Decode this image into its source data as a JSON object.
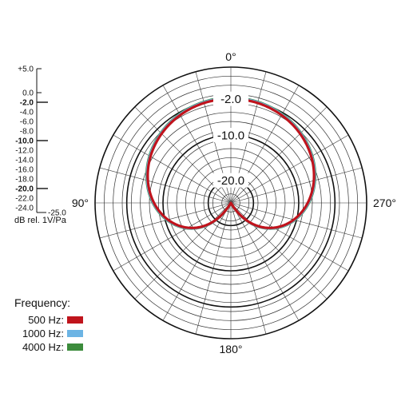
{
  "chart_data": {
    "type": "polar",
    "unit_label": "dB rel. 1V/Pa",
    "scale_ticks": [
      {
        "label": "+5.0",
        "value": 5,
        "bold": false
      },
      {
        "label": "0.0",
        "value": 0,
        "bold": false
      },
      {
        "label": "-2.0",
        "value": -2,
        "bold": true
      },
      {
        "label": "-4.0",
        "value": -4,
        "bold": false
      },
      {
        "label": "-6.0",
        "value": -6,
        "bold": false
      },
      {
        "label": "-8.0",
        "value": -8,
        "bold": false
      },
      {
        "label": "-10.0",
        "value": -10,
        "bold": true
      },
      {
        "label": "-12.0",
        "value": -12,
        "bold": false
      },
      {
        "label": "-14.0",
        "value": -14,
        "bold": false
      },
      {
        "label": "-16.0",
        "value": -16,
        "bold": false
      },
      {
        "label": "-18.0",
        "value": -18,
        "bold": false
      },
      {
        "label": "-20.0",
        "value": -20,
        "bold": true
      },
      {
        "label": "-22.0",
        "value": -22,
        "bold": false
      },
      {
        "label": "-24.0",
        "value": -24,
        "bold": false
      },
      {
        "label": "-25.0",
        "value": -25,
        "bold": false
      }
    ],
    "ring_labels": [
      {
        "label": "-2.0",
        "value": -2
      },
      {
        "label": "-10.0",
        "value": -10
      },
      {
        "label": "-20.0",
        "value": -20
      }
    ],
    "angle_labels": [
      {
        "label": "0°",
        "angle": 0
      },
      {
        "label": "270°",
        "angle": 270
      },
      {
        "label": "180°",
        "angle": 180
      },
      {
        "label": "90°",
        "angle": 90
      }
    ],
    "r_range": [
      -25,
      5
    ],
    "legend_title": "Frequency:",
    "series": [
      {
        "name": "500 Hz:",
        "color": "#c0141c",
        "pattern": "cardioid"
      },
      {
        "name": "1000 Hz:",
        "color": "#6cb4e4",
        "pattern": "cardioid"
      },
      {
        "name": "4000 Hz:",
        "color": "#3c8c3c",
        "pattern": "cardioid"
      }
    ]
  }
}
